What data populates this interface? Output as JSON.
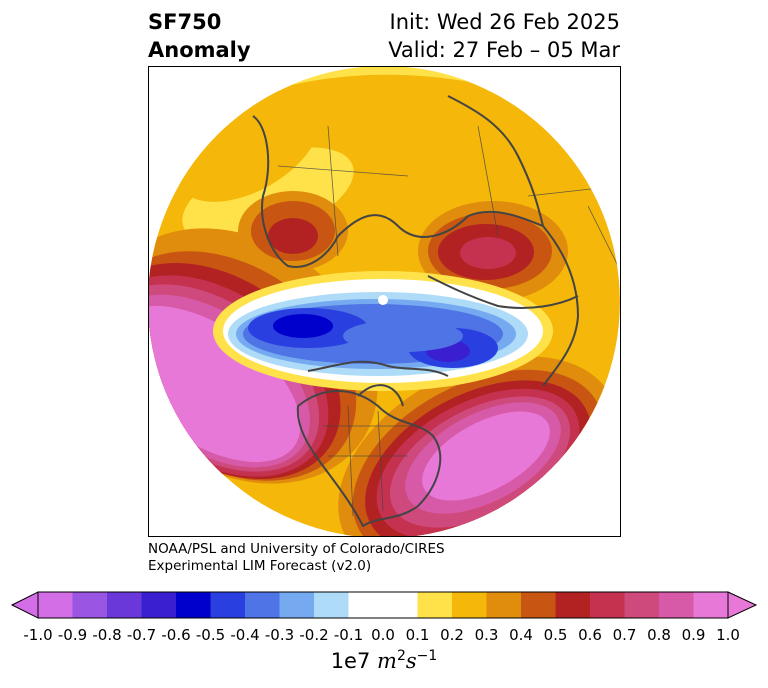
{
  "header": {
    "title_line1": "SF750",
    "title_line2": "Anomaly",
    "init": "Init: Wed 26 Feb 2025",
    "valid": "Valid: 27 Feb – 05 Mar"
  },
  "credit": {
    "line1": "NOAA/PSL and University of Colorado/CIRES",
    "line2": "Experimental LIM Forecast (v2.0)"
  },
  "colorbar": {
    "units_prefix": "1e7",
    "ticks": [
      "-1.0",
      "-0.9",
      "-0.8",
      "-0.7",
      "-0.6",
      "-0.5",
      "-0.4",
      "-0.3",
      "-0.2",
      "-0.1",
      "0.0",
      "0.1",
      "0.2",
      "0.3",
      "0.4",
      "0.5",
      "0.6",
      "0.7",
      "0.8",
      "0.9",
      "1.0"
    ],
    "colors": [
      "#d46ee6",
      "#9a55e2",
      "#6a38d9",
      "#3a1fd0",
      "#0000cc",
      "#2a3fe0",
      "#4f74e6",
      "#75aaf0",
      "#aedcf8",
      "#ffffff",
      "#ffffff",
      "#ffe24a",
      "#f4b70a",
      "#e08c0c",
      "#c85612",
      "#b22222",
      "#c43250",
      "#cf4a7c",
      "#d65aa8",
      "#e878d8"
    ],
    "extend_low": "#d46ee6",
    "extend_high": "#e878d8"
  }
}
